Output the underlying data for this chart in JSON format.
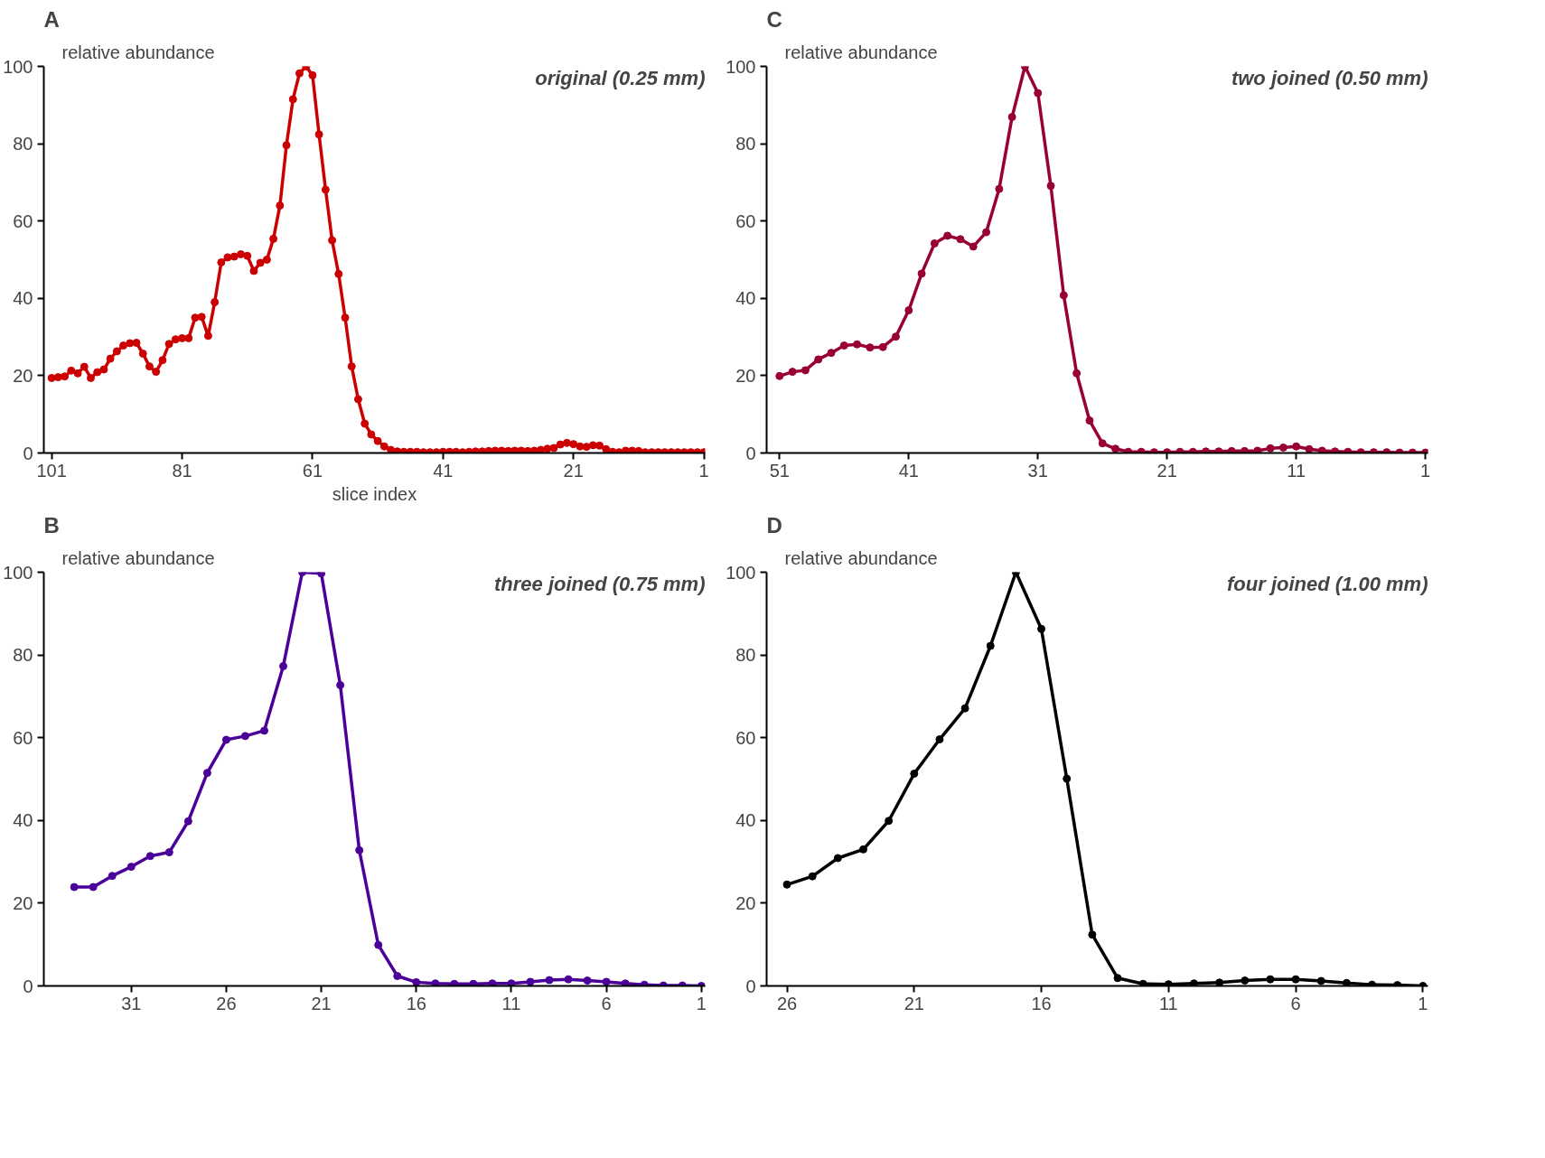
{
  "chart_data": [
    {
      "type": "line",
      "title": "A",
      "ylabel": "relative abundance",
      "xlabel": "slice index",
      "annotations": [
        "original (0.25 mm)"
      ],
      "marker": "circle",
      "line_style": "solid",
      "xlim": [
        102.2,
        0.8
      ],
      "ylim": [
        0,
        100
      ],
      "xticks": [
        101,
        81,
        61,
        41,
        21,
        1
      ],
      "yticks": [
        0,
        20,
        40,
        60,
        80,
        100
      ],
      "x": [
        101,
        100,
        99,
        98,
        97,
        96,
        95,
        94,
        93,
        92,
        91,
        90,
        89,
        88,
        87,
        86,
        85,
        84,
        83,
        82,
        81,
        80,
        79,
        78,
        77,
        76,
        75,
        74,
        73,
        72,
        71,
        70,
        69,
        68,
        67,
        66,
        65,
        64,
        63,
        62,
        61,
        60,
        59,
        58,
        57,
        56,
        55,
        54,
        53,
        52,
        51,
        50,
        49,
        48,
        47,
        46,
        45,
        44,
        43,
        42,
        41,
        40,
        39,
        38,
        37,
        36,
        35,
        34,
        33,
        32,
        31,
        30,
        29,
        28,
        27,
        26,
        25,
        24,
        23,
        22,
        21,
        20,
        19,
        18,
        17,
        16,
        15,
        14,
        13,
        12,
        11,
        10,
        9,
        8,
        7,
        6,
        5,
        4,
        3,
        2,
        1
      ],
      "series": [
        {
          "color": "#cc0000",
          "values": [
            19.4,
            19.6,
            19.8,
            21.3,
            20.6,
            22.3,
            19.4,
            20.9,
            21.6,
            24.4,
            26.3,
            27.8,
            28.4,
            28.5,
            25.7,
            22.4,
            21.0,
            24.0,
            28.2,
            29.4,
            29.7,
            29.7,
            35.0,
            35.2,
            30.3,
            39.0,
            49.3,
            50.6,
            50.8,
            51.4,
            51.0,
            47.1,
            49.2,
            50.0,
            55.4,
            64.0,
            79.6,
            91.5,
            98.2,
            100,
            97.7,
            82.4,
            68.1,
            55.0,
            46.3,
            35.0,
            22.4,
            13.9,
            7.6,
            4.8,
            3.1,
            1.7,
            0.8,
            0.4,
            0.3,
            0.3,
            0.3,
            0.2,
            0.2,
            0.2,
            0.3,
            0.3,
            0.3,
            0.2,
            0.3,
            0.4,
            0.4,
            0.5,
            0.6,
            0.6,
            0.5,
            0.6,
            0.6,
            0.5,
            0.6,
            0.8,
            1.1,
            1.3,
            2.2,
            2.6,
            2.3,
            1.7,
            1.6,
            2.0,
            1.9,
            1.0,
            0.3,
            0.2,
            0.6,
            0.6,
            0.5,
            0.2,
            0.2,
            0.2,
            0.2,
            0.2,
            0.2,
            0.2,
            0.2,
            0.2,
            0.2
          ]
        }
      ]
    },
    {
      "type": "line",
      "title": "C",
      "ylabel": "relative abundance",
      "annotations": [
        "two joined (0.50 mm)"
      ],
      "marker": "circle",
      "line_style": "solid",
      "xlim": [
        52,
        0.8
      ],
      "ylim": [
        0,
        100
      ],
      "xticks": [
        51,
        41,
        31,
        21,
        11,
        1
      ],
      "yticks": [
        0,
        20,
        40,
        60,
        80,
        100
      ],
      "x": [
        51,
        50,
        49,
        48,
        47,
        46,
        45,
        44,
        43,
        42,
        41,
        40,
        39,
        38,
        37,
        36,
        35,
        34,
        33,
        32,
        31,
        30,
        29,
        28,
        27,
        26,
        25,
        24,
        23,
        22,
        21,
        20,
        19,
        18,
        17,
        16,
        15,
        14,
        13,
        12,
        11,
        10,
        9,
        8,
        7,
        6,
        5,
        4,
        3,
        2,
        1
      ],
      "series": [
        {
          "color": "#990033",
          "values": [
            19.9,
            21.0,
            21.4,
            24.2,
            25.9,
            27.8,
            28.1,
            27.3,
            27.4,
            30.1,
            36.9,
            46.4,
            54.2,
            56.2,
            55.3,
            53.4,
            57.1,
            68.3,
            86.9,
            100,
            93.1,
            69.1,
            40.8,
            20.6,
            8.4,
            2.5,
            1.1,
            0.3,
            0.3,
            0.2,
            0.2,
            0.3,
            0.3,
            0.4,
            0.4,
            0.5,
            0.5,
            0.6,
            1.2,
            1.4,
            1.7,
            1.0,
            0.6,
            0.4,
            0.3,
            0.2,
            0.2,
            0.2,
            0.1,
            0.1,
            0.1
          ]
        }
      ]
    },
    {
      "type": "line",
      "title": "B",
      "ylabel": "relative abundance",
      "annotations": [
        "three joined (0.75 mm)"
      ],
      "marker": "circle",
      "line_style": "solid",
      "xlim": [
        35.6,
        0.8
      ],
      "ylim": [
        0,
        100
      ],
      "xticks": [
        31,
        26,
        21,
        16,
        11,
        6,
        1
      ],
      "yticks": [
        0,
        20,
        40,
        60,
        80,
        100
      ],
      "x": [
        34,
        33,
        32,
        31,
        30,
        29,
        28,
        27,
        26,
        25,
        24,
        23,
        22,
        21,
        20,
        19,
        18,
        17,
        16,
        15,
        14,
        13,
        12,
        11,
        10,
        9,
        8,
        7,
        6,
        5,
        4,
        3,
        2,
        1
      ],
      "series": [
        {
          "color": "#4b0099",
          "values": [
            23.9,
            23.9,
            26.6,
            28.8,
            31.4,
            32.3,
            39.8,
            51.5,
            59.5,
            60.4,
            61.7,
            77.3,
            100,
            99.7,
            72.7,
            32.8,
            9.9,
            2.4,
            0.9,
            0.6,
            0.5,
            0.5,
            0.6,
            0.6,
            1.0,
            1.4,
            1.6,
            1.3,
            1.0,
            0.6,
            0.3,
            0.1,
            0.1,
            0
          ]
        }
      ]
    },
    {
      "type": "line",
      "title": "D",
      "ylabel": "relative abundance",
      "annotations": [
        "four joined (1.00 mm)"
      ],
      "marker": "circle",
      "line_style": "solid",
      "xlim": [
        26.8,
        0.8
      ],
      "ylim": [
        0,
        100
      ],
      "xticks": [
        26,
        21,
        16,
        11,
        6,
        1
      ],
      "yticks": [
        0,
        20,
        40,
        60,
        80,
        100
      ],
      "x": [
        26,
        25,
        24,
        23,
        22,
        21,
        20,
        19,
        18,
        17,
        16,
        15,
        14,
        13,
        12,
        11,
        10,
        9,
        8,
        7,
        6,
        5,
        4,
        3,
        2,
        1
      ],
      "series": [
        {
          "color": "#000000",
          "values": [
            24.5,
            26.5,
            30.9,
            33.0,
            39.9,
            51.3,
            59.6,
            67.1,
            82.2,
            100,
            86.3,
            50.1,
            12.4,
            1.9,
            0.5,
            0.4,
            0.6,
            0.8,
            1.3,
            1.6,
            1.6,
            1.2,
            0.7,
            0.3,
            0.2,
            0
          ]
        }
      ]
    }
  ]
}
